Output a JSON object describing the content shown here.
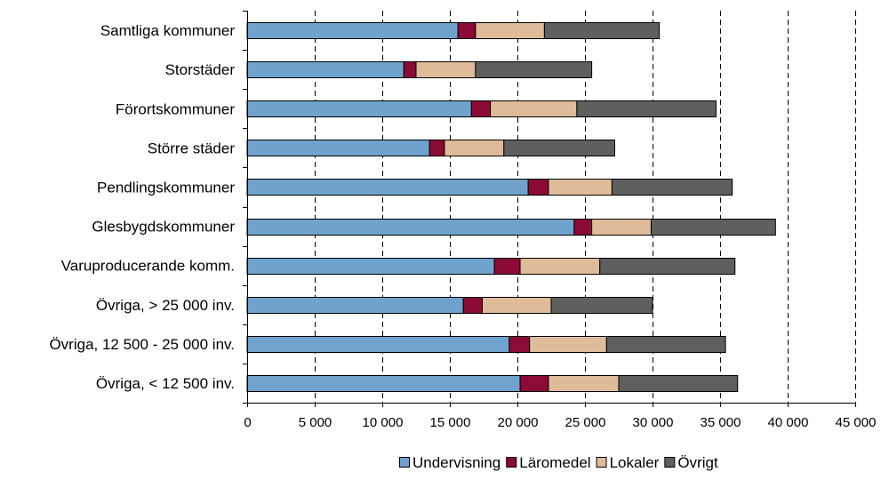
{
  "chart_data": {
    "type": "bar",
    "orientation": "horizontal",
    "stacked": true,
    "categories": [
      "Samtliga kommuner",
      "Storstäder",
      "Förortskommuner",
      "Större städer",
      "Pendlingskommuner",
      "Glesbygdskommuner",
      "Varuproducerande komm.",
      "Övriga, > 25 000 inv.",
      "Övriga, 12 500 - 25 000 inv.",
      "Övriga, < 12 500 inv."
    ],
    "series": [
      {
        "name": "Undervisning",
        "color": "#6fa2cc",
        "values": [
          15600,
          11600,
          16600,
          13500,
          20800,
          24200,
          18300,
          16000,
          19400,
          20200
        ]
      },
      {
        "name": "Läromedel",
        "color": "#8b0a36",
        "values": [
          1300,
          900,
          1400,
          1100,
          1500,
          1300,
          1900,
          1400,
          1500,
          2100
        ]
      },
      {
        "name": "Lokaler",
        "color": "#dfbc99",
        "values": [
          5100,
          4400,
          6400,
          4400,
          4700,
          4400,
          5900,
          5100,
          5700,
          5200
        ]
      },
      {
        "name": "Övrigt",
        "color": "#5f5f5f",
        "values": [
          8500,
          8600,
          10300,
          8200,
          8900,
          9200,
          10000,
          7500,
          8800,
          8800
        ]
      }
    ],
    "xlim": [
      0,
      45000
    ],
    "xticks": [
      0,
      5000,
      10000,
      15000,
      20000,
      25000,
      30000,
      35000,
      40000,
      45000
    ],
    "xtick_labels": [
      "0",
      "5 000",
      "10 000",
      "15 000",
      "20 000",
      "25 000",
      "30 000",
      "35 000",
      "40 000",
      "45 000"
    ],
    "grid": "vertical dashed",
    "legend_position": "bottom"
  }
}
